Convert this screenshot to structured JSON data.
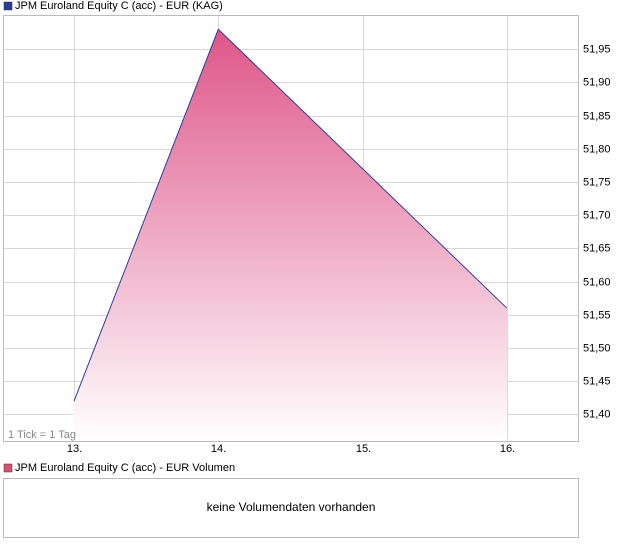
{
  "chart_data": {
    "type": "area",
    "legend": "JPM Euroland Equity C (acc) - EUR (KAG)",
    "note": "1 Tick = 1 Tag",
    "categories": [
      "13.",
      "14.",
      "15.",
      "16."
    ],
    "series": [
      {
        "name": "JPM Euroland Equity C (acc) - EUR (KAG)",
        "color": "#2b3d9c",
        "values": [
          51.42,
          51.98,
          null,
          51.56
        ]
      }
    ],
    "ylim": [
      51.36,
      52.0
    ],
    "yticks": [
      {
        "value": 51.4,
        "label": "51,40"
      },
      {
        "value": 51.45,
        "label": "51,45"
      },
      {
        "value": 51.5,
        "label": "51,50"
      },
      {
        "value": 51.55,
        "label": "51,55"
      },
      {
        "value": 51.6,
        "label": "51,60"
      },
      {
        "value": 51.65,
        "label": "51,65"
      },
      {
        "value": 51.7,
        "label": "51,70"
      },
      {
        "value": 51.75,
        "label": "51,75"
      },
      {
        "value": 51.8,
        "label": "51,80"
      },
      {
        "value": 51.85,
        "label": "51,85"
      },
      {
        "value": 51.9,
        "label": "51,90"
      },
      {
        "value": 51.95,
        "label": "51,95"
      }
    ],
    "grid": true,
    "volume_legend": "JPM Euroland Equity C (acc) - EUR Volumen",
    "volume_color": "#d9506e",
    "volume_message": "keine Volumendaten vorhanden"
  }
}
